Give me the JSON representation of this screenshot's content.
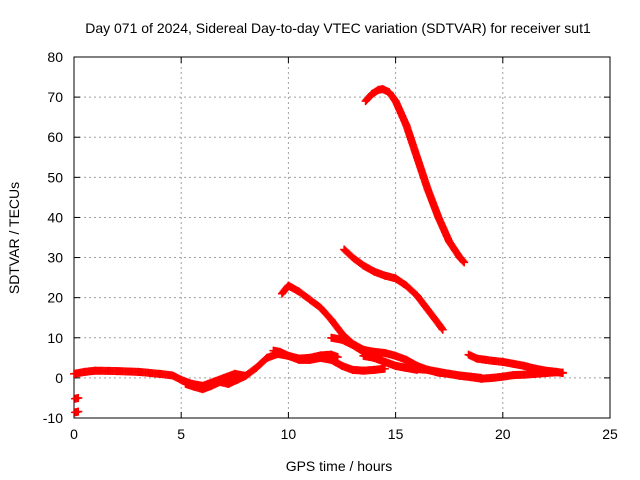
{
  "chart_data": {
    "type": "scatter",
    "title": "Day 071 of 2024, Sidereal Day-to-day VTEC variation (SDTVAR) for receiver sut1",
    "xlabel": "GPS time / hours",
    "ylabel": "SDTVAR / TECUs",
    "xlim": [
      0,
      25
    ],
    "ylim": [
      -10,
      80
    ],
    "xticks": [
      0,
      5,
      10,
      15,
      20,
      25
    ],
    "yticks": [
      -10,
      0,
      10,
      20,
      30,
      40,
      50,
      60,
      70,
      80
    ],
    "grid": true,
    "marker": "+",
    "color": "#ff0000",
    "series": [
      {
        "name": "early-low-1",
        "x": [
          0.05,
          0.2
        ],
        "y": [
          -5.2,
          -5.0
        ]
      },
      {
        "name": "early-low-2",
        "x": [
          0.05,
          0.2
        ],
        "y": [
          -8.6,
          -8.4
        ]
      },
      {
        "name": "baseline-early",
        "x": [
          0.0,
          0.5,
          1.0,
          2.0,
          3.0,
          4.0,
          4.6,
          5.0,
          5.5,
          6.0,
          6.5,
          7.0,
          7.5,
          8.0,
          8.5,
          9.0,
          9.5,
          10.0,
          10.5,
          11.0,
          11.5,
          12.0,
          12.5,
          13.0,
          13.5,
          14.0,
          14.5
        ],
        "y": [
          1.0,
          1.5,
          1.8,
          1.7,
          1.5,
          1.0,
          0.6,
          -0.5,
          -1.5,
          -2.0,
          -1.0,
          0.0,
          1.0,
          0.5,
          2.5,
          5.0,
          6.0,
          5.5,
          4.5,
          4.5,
          5.0,
          4.5,
          3.0,
          2.0,
          1.8,
          2.0,
          2.3
        ]
      },
      {
        "name": "dip-extra",
        "x": [
          5.2,
          5.6,
          6.0,
          6.4,
          6.8,
          7.2,
          7.6,
          8.0
        ],
        "y": [
          -1.5,
          -2.2,
          -2.8,
          -2.0,
          -1.0,
          -1.5,
          -0.5,
          0.5
        ]
      },
      {
        "name": "hump",
        "x": [
          9.3,
          9.6,
          10.0,
          10.5,
          11.0,
          11.5,
          12.0,
          12.3
        ],
        "y": [
          6.8,
          6.5,
          5.5,
          4.8,
          5.0,
          5.6,
          5.8,
          5.2
        ]
      },
      {
        "name": "arc-10",
        "x": [
          9.7,
          10.0,
          10.5,
          11.0,
          11.5,
          12.0,
          12.5,
          13.0,
          13.5,
          14.0,
          14.5,
          15.0,
          15.5,
          16.0,
          16.5,
          17.0,
          17.5,
          18.0,
          18.5,
          19.0
        ],
        "y": [
          21.0,
          23.0,
          21.5,
          19.5,
          17.5,
          14.5,
          11.0,
          8.5,
          7.0,
          6.5,
          6.2,
          5.5,
          4.5,
          3.0,
          2.0,
          1.3,
          1.0,
          0.6,
          0.3,
          0.0
        ]
      },
      {
        "name": "arc-12a",
        "x": [
          12.0,
          12.5,
          13.0,
          13.5,
          14.0,
          14.5,
          15.0,
          15.5,
          16.0
        ],
        "y": [
          10.0,
          9.5,
          8.2,
          6.5,
          5.0,
          4.0,
          3.0,
          2.5,
          2.0
        ]
      },
      {
        "name": "arc-12b",
        "x": [
          12.6,
          13.0,
          13.5,
          14.0,
          14.5,
          15.0,
          15.5,
          16.0,
          16.5,
          17.0,
          17.2
        ],
        "y": [
          32.0,
          30.0,
          28.0,
          26.5,
          25.5,
          24.8,
          23.0,
          20.5,
          17.0,
          13.5,
          12.0
        ]
      },
      {
        "name": "arc-13",
        "x": [
          13.6,
          13.9,
          14.2,
          14.4,
          14.7,
          15.0,
          15.5,
          16.0,
          16.5,
          17.0,
          17.5,
          18.0,
          18.2
        ],
        "y": [
          69.0,
          70.8,
          71.8,
          72.0,
          71.2,
          69.0,
          63.0,
          55.0,
          47.0,
          40.0,
          34.0,
          30.0,
          28.8
        ]
      },
      {
        "name": "arc-13-low",
        "x": [
          13.5,
          14.0,
          14.5,
          15.0,
          15.5,
          16.0,
          16.5,
          17.0,
          17.5,
          18.0,
          18.5,
          19.0,
          19.5,
          20.0,
          20.5,
          21.0,
          21.5,
          22.0,
          22.5,
          22.8
        ],
        "y": [
          5.5,
          5.0,
          4.0,
          3.0,
          2.5,
          2.2,
          2.0,
          1.5,
          1.0,
          0.5,
          0.2,
          -0.2,
          0.0,
          0.3,
          0.7,
          0.8,
          1.0,
          1.2,
          1.4,
          1.3
        ]
      },
      {
        "name": "arc-18",
        "x": [
          18.4,
          18.8,
          19.2,
          19.6,
          20.0,
          20.5,
          21.0,
          21.5,
          22.0,
          22.5,
          22.8
        ],
        "y": [
          5.8,
          4.8,
          4.5,
          4.2,
          4.0,
          3.5,
          3.0,
          2.3,
          1.8,
          1.5,
          1.2
        ]
      }
    ]
  }
}
